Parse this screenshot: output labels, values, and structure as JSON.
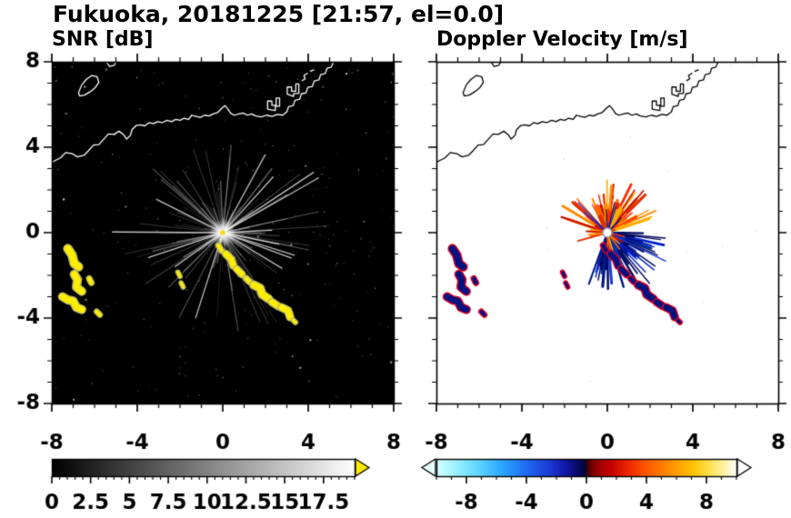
{
  "title": "Fukuoka, 20181225 [21:57, el=0.0]",
  "chart_data": [
    {
      "type": "heatmap",
      "panel": "snr",
      "title": "SNR [dB]",
      "xlim": [
        -8,
        8
      ],
      "ylim": [
        -8,
        8
      ],
      "xticks": [
        -8,
        -4,
        0,
        4,
        8
      ],
      "xtick_labels": [
        "-8",
        "-4",
        "0",
        "4",
        "8"
      ],
      "yticks": [
        -8,
        -4,
        0,
        4,
        8
      ],
      "ytick_labels": [
        "-8",
        "-4",
        "0",
        "4",
        "8"
      ],
      "minor_tick_step": 1,
      "grid": false,
      "background": "#000000",
      "colorbar": {
        "min": 0,
        "max": 19.5,
        "minor_step": 0.5,
        "tick_values": [
          0,
          2.5,
          5,
          7.5,
          10,
          12.5,
          15,
          17.5
        ],
        "tick_labels": [
          "0",
          "2.5",
          "5",
          "7.5",
          "10",
          "12.5",
          "15",
          "17.5"
        ],
        "stops": [
          [
            0,
            "#000000"
          ],
          [
            1,
            "#ffffff"
          ]
        ],
        "over_arrow": "#ffe800"
      },
      "content": {
        "radar_center": [
          0,
          0
        ],
        "noise_speckles": 240,
        "streak_color": "210,210,210",
        "bright_streak_color": "240,240,240",
        "center_dot_color": "#ffdd00",
        "echo_fill": "#ffee00",
        "echo_edge": "#b9b96a",
        "coast_color": "#ffffff"
      }
    },
    {
      "type": "heatmap",
      "panel": "doppler_velocity",
      "title": "Doppler Velocity [m/s]",
      "xlim": [
        -8,
        8
      ],
      "ylim": [
        -8,
        8
      ],
      "xticks": [
        -8,
        -4,
        0,
        4,
        8
      ],
      "xtick_labels": [
        "-8",
        "-4",
        "0",
        "4",
        "8"
      ],
      "yticks": [
        -8,
        -4,
        0,
        4,
        8
      ],
      "ytick_labels": [
        "-8",
        "-4",
        "0",
        "4",
        "8"
      ],
      "minor_tick_step": 1,
      "grid": false,
      "background": "#ffffff",
      "colorbar": {
        "min": -10,
        "max": 10,
        "minor_step": 1,
        "tick_values": [
          -8,
          -4,
          0,
          4,
          8
        ],
        "tick_labels": [
          "-8",
          "-4",
          "0",
          "4",
          "8"
        ],
        "stops": [
          [
            0,
            "#d8ffff"
          ],
          [
            0.06,
            "#9ff3ff"
          ],
          [
            0.14,
            "#5fd4ff"
          ],
          [
            0.22,
            "#2aa6ff"
          ],
          [
            0.3,
            "#1f6cf2"
          ],
          [
            0.37,
            "#1b3fd8"
          ],
          [
            0.43,
            "#1217a8"
          ],
          [
            0.47,
            "#070b66"
          ],
          [
            0.495,
            "#03053a"
          ],
          [
            0.505,
            "#4a0000"
          ],
          [
            0.53,
            "#8f0000"
          ],
          [
            0.58,
            "#c40000"
          ],
          [
            0.64,
            "#ef2800"
          ],
          [
            0.71,
            "#ff6000"
          ],
          [
            0.78,
            "#ff9000"
          ],
          [
            0.85,
            "#ffbe00"
          ],
          [
            0.91,
            "#ffe14d"
          ],
          [
            0.96,
            "#fff3a8"
          ],
          [
            1,
            "#ffffff"
          ]
        ],
        "under_arrow": "#e6ffff",
        "over_arrow": "#ffffff"
      },
      "content": {
        "radar_center": [
          0,
          0
        ],
        "noise_speckles": 14,
        "away_colors": [
          "#ff2a00",
          "#ff6600",
          "#ff8c00",
          "#ffae00",
          "#e03000",
          "#cc1100"
        ],
        "toward_colors": [
          "#001488",
          "#0022cc",
          "#000a60",
          "#1e3ad2",
          "#0033aa"
        ],
        "echo_edge": "#e00022",
        "echo_fill": "#001380",
        "center_marker_fill": "#ffffff",
        "center_marker_edge": "#999999",
        "coast_color": "#000000"
      }
    }
  ],
  "coastline": [
    {
      "closed": false,
      "pts": [
        [
          -8,
          3.3
        ],
        [
          -7.6,
          3.5
        ],
        [
          -7.35,
          3.75
        ],
        [
          -7.05,
          3.7
        ],
        [
          -6.8,
          3.55
        ],
        [
          -6.5,
          3.62
        ],
        [
          -6.3,
          3.82
        ],
        [
          -6.05,
          4.1
        ],
        [
          -5.8,
          4.12
        ],
        [
          -5.55,
          4.4
        ],
        [
          -5.35,
          4.62
        ],
        [
          -5.1,
          4.6
        ],
        [
          -4.85,
          4.75
        ],
        [
          -4.65,
          4.6
        ],
        [
          -4.5,
          4.38
        ],
        [
          -4.32,
          4.56
        ],
        [
          -4.25,
          4.82
        ],
        [
          -4.05,
          5.02
        ],
        [
          -3.85,
          5.05
        ],
        [
          -3.65,
          5.0
        ],
        [
          -3.45,
          5.15
        ],
        [
          -3.25,
          5.1
        ],
        [
          -3.05,
          5.2
        ],
        [
          -2.85,
          5.15
        ],
        [
          -2.6,
          5.26
        ],
        [
          -2.4,
          5.2
        ],
        [
          -2.2,
          5.3
        ],
        [
          -2.0,
          5.26
        ],
        [
          -1.8,
          5.36
        ],
        [
          -1.6,
          5.3
        ],
        [
          -1.45,
          5.5
        ],
        [
          -1.25,
          5.44
        ],
        [
          -1.05,
          5.4
        ],
        [
          -0.85,
          5.5
        ],
        [
          -0.65,
          5.46
        ],
        [
          -0.45,
          5.56
        ],
        [
          -0.25,
          5.62
        ],
        [
          -0.05,
          5.82
        ],
        [
          0.1,
          5.95
        ],
        [
          0.25,
          5.78
        ],
        [
          0.38,
          5.58
        ],
        [
          0.55,
          5.5
        ],
        [
          0.75,
          5.56
        ],
        [
          0.95,
          5.6
        ],
        [
          1.15,
          5.5
        ],
        [
          1.35,
          5.56
        ],
        [
          1.55,
          5.46
        ],
        [
          1.8,
          5.42
        ],
        [
          2.05,
          5.5
        ],
        [
          2.3,
          5.44
        ],
        [
          2.55,
          5.54
        ],
        [
          2.8,
          5.5
        ],
        [
          3.0,
          5.66
        ],
        [
          3.08,
          5.9
        ],
        [
          3.3,
          5.95
        ],
        [
          3.38,
          6.2
        ],
        [
          3.6,
          6.25
        ],
        [
          3.68,
          6.5
        ],
        [
          3.9,
          6.55
        ],
        [
          3.98,
          6.8
        ],
        [
          4.2,
          6.85
        ],
        [
          4.28,
          7.1
        ],
        [
          4.5,
          7.15
        ],
        [
          4.58,
          7.4
        ],
        [
          4.8,
          7.45
        ],
        [
          4.88,
          7.7
        ],
        [
          5.08,
          7.75
        ],
        [
          5.18,
          8.0
        ]
      ]
    },
    {
      "closed": true,
      "pts": [
        [
          -6.75,
          6.55
        ],
        [
          -6.6,
          6.92
        ],
        [
          -6.38,
          7.18
        ],
        [
          -6.12,
          7.36
        ],
        [
          -5.88,
          7.3
        ],
        [
          -5.8,
          7.04
        ],
        [
          -5.96,
          6.8
        ],
        [
          -6.2,
          6.6
        ],
        [
          -6.46,
          6.44
        ],
        [
          -6.7,
          6.4
        ]
      ]
    },
    {
      "closed": false,
      "pts": [
        [
          -5.45,
          8.0
        ],
        [
          -5.3,
          7.78
        ],
        [
          -5.08,
          7.84
        ],
        [
          -4.98,
          8.0
        ]
      ]
    },
    {
      "closed": true,
      "pts": [
        [
          2.1,
          5.78
        ],
        [
          2.1,
          6.16
        ],
        [
          2.3,
          6.16
        ],
        [
          2.3,
          5.96
        ],
        [
          2.5,
          5.96
        ],
        [
          2.5,
          6.3
        ],
        [
          2.66,
          6.3
        ],
        [
          2.66,
          5.92
        ],
        [
          2.46,
          5.92
        ],
        [
          2.46,
          5.72
        ]
      ]
    },
    {
      "closed": true,
      "pts": [
        [
          3.02,
          6.48
        ],
        [
          3.02,
          6.82
        ],
        [
          3.22,
          6.82
        ],
        [
          3.22,
          6.62
        ],
        [
          3.42,
          6.62
        ],
        [
          3.42,
          6.96
        ],
        [
          3.56,
          6.96
        ],
        [
          3.56,
          6.52
        ],
        [
          3.32,
          6.52
        ],
        [
          3.32,
          6.38
        ]
      ]
    },
    {
      "closed": false,
      "pts": [
        [
          3.72,
          7.12
        ],
        [
          3.86,
          7.2
        ],
        [
          3.8,
          7.36
        ],
        [
          3.96,
          7.46
        ]
      ]
    },
    {
      "closed": false,
      "pts": [
        [
          4.1,
          7.56
        ],
        [
          4.26,
          7.62
        ]
      ]
    }
  ],
  "echoes": [
    {
      "pts": [
        [
          -7.25,
          -0.75
        ],
        [
          -7.05,
          -1.05
        ],
        [
          -6.95,
          -1.45
        ],
        [
          -6.75,
          -1.6
        ]
      ],
      "w": 0.32
    },
    {
      "pts": [
        [
          -6.95,
          -1.95
        ],
        [
          -6.8,
          -2.2
        ],
        [
          -6.85,
          -2.55
        ],
        [
          -6.6,
          -2.75
        ]
      ],
      "w": 0.3
    },
    {
      "pts": [
        [
          -7.5,
          -3.0
        ],
        [
          -7.25,
          -3.15
        ],
        [
          -7.0,
          -3.2
        ],
        [
          -6.85,
          -3.5
        ],
        [
          -6.6,
          -3.6
        ]
      ],
      "w": 0.3
    },
    {
      "pts": [
        [
          -6.25,
          -2.15
        ],
        [
          -6.15,
          -2.35
        ]
      ],
      "w": 0.18
    },
    {
      "pts": [
        [
          -5.9,
          -3.7
        ],
        [
          -5.75,
          -3.85
        ]
      ],
      "w": 0.16
    },
    {
      "pts": [
        [
          -0.2,
          -0.6
        ],
        [
          -0.05,
          -0.85
        ]
      ],
      "w": 0.18
    },
    {
      "pts": [
        [
          0.15,
          -1.0
        ],
        [
          0.4,
          -1.25
        ],
        [
          0.5,
          -1.55
        ]
      ],
      "w": 0.26
    },
    {
      "pts": [
        [
          0.65,
          -1.7
        ],
        [
          0.9,
          -1.95
        ]
      ],
      "w": 0.24
    },
    {
      "pts": [
        [
          1.1,
          -2.15
        ],
        [
          1.25,
          -2.3
        ]
      ],
      "w": 0.2
    },
    {
      "pts": [
        [
          1.45,
          -2.45
        ],
        [
          1.75,
          -2.6
        ],
        [
          1.85,
          -2.9
        ],
        [
          2.15,
          -3.1
        ]
      ],
      "w": 0.3
    },
    {
      "pts": [
        [
          2.3,
          -3.25
        ],
        [
          2.6,
          -3.45
        ]
      ],
      "w": 0.26
    },
    {
      "pts": [
        [
          2.75,
          -3.5
        ],
        [
          3.05,
          -3.65
        ],
        [
          3.15,
          -3.95
        ]
      ],
      "w": 0.28
    },
    {
      "pts": [
        [
          3.3,
          -4.1
        ],
        [
          3.4,
          -4.2
        ]
      ],
      "w": 0.14
    },
    {
      "pts": [
        [
          -2.1,
          -1.85
        ],
        [
          -2.0,
          -2.05
        ]
      ],
      "w": 0.12
    },
    {
      "pts": [
        [
          -1.95,
          -2.35
        ],
        [
          -1.85,
          -2.55
        ]
      ],
      "w": 0.12
    }
  ]
}
